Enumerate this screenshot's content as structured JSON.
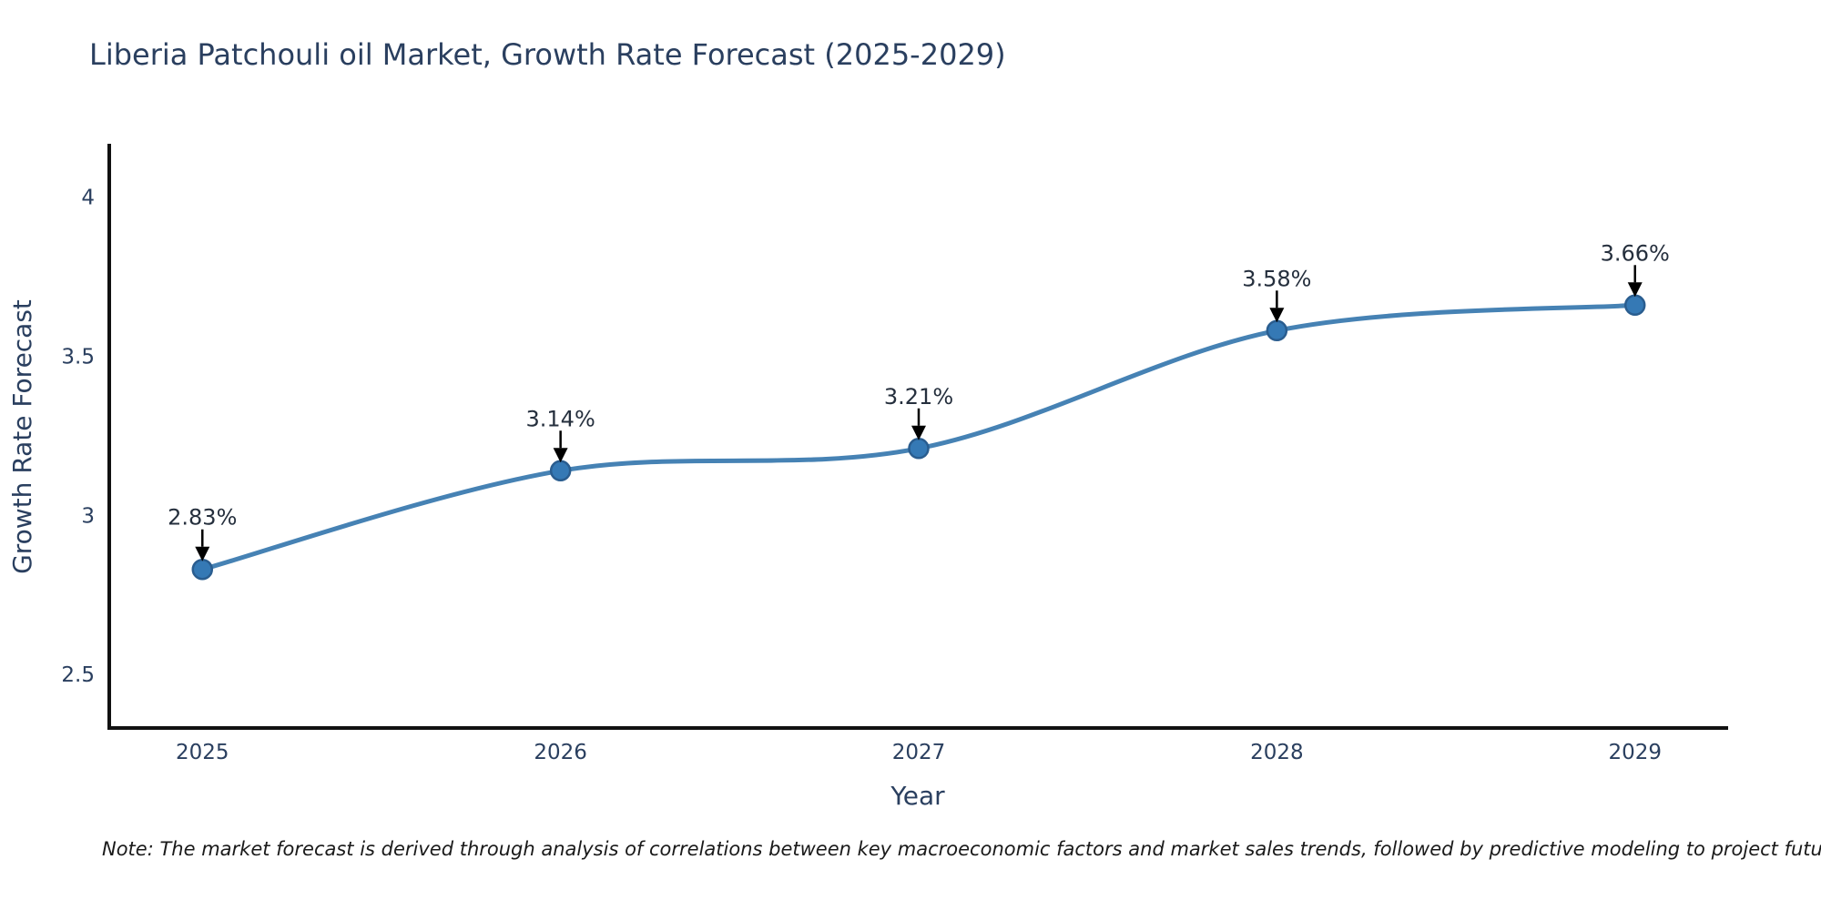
{
  "note": {
    "text": "Note: The market forecast is derived through analysis of correlations between key macroeconomic factors and market sales trends, followed by predictive modeling to project future sales"
  },
  "chart_data": {
    "type": "line",
    "title": "Liberia Patchouli oil Market, Growth Rate Forecast (2025-2029)",
    "xlabel": "Year",
    "ylabel": "Growth Rate Forecast",
    "x": [
      2025,
      2026,
      2027,
      2028,
      2029
    ],
    "series": [
      {
        "name": "Growth Rate Forecast",
        "values": [
          2.83,
          3.14,
          3.21,
          3.58,
          3.66
        ]
      }
    ],
    "point_labels": [
      "2.83%",
      "3.14%",
      "3.21%",
      "3.58%",
      "3.66%"
    ],
    "xtick_labels": [
      "2025",
      "2026",
      "2027",
      "2028",
      "2029"
    ],
    "ytick_values": [
      2.5,
      3.0,
      3.5,
      4.0
    ],
    "ytick_labels": [
      "2.5",
      "3",
      "3.5",
      "4"
    ],
    "xlim": [
      2024.74,
      2029.26
    ],
    "ylim": [
      2.332,
      4.161
    ],
    "grid": false,
    "legend_position": "none",
    "line_color": "#4682b4",
    "marker_fill": "#3579b5",
    "marker_edge": "#2a5d8f",
    "arrow_color": "#000000",
    "text_color": "#2a3f5f",
    "annotation_color": "#252f3d",
    "spine_color": "#111111",
    "note_color": "#1a1a1a"
  }
}
